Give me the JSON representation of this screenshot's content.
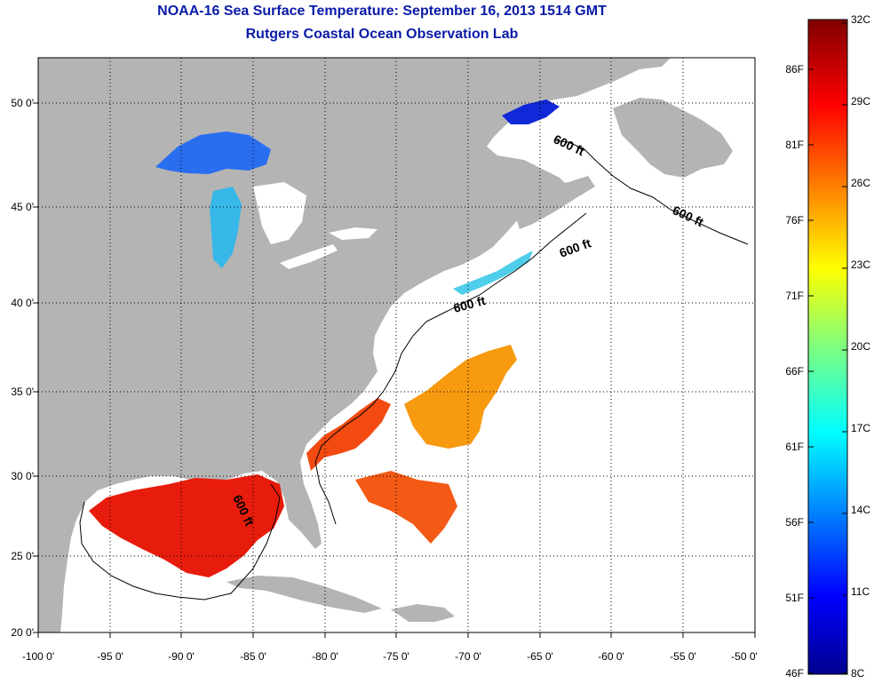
{
  "header": {
    "title": "NOAA-16 Sea Surface Temperature:  September 16, 2013 1514 GMT",
    "subtitle": "Rutgers Coastal Ocean Observation Lab"
  },
  "map": {
    "lon_labels": [
      "-100 0'",
      "-95 0'",
      "-90 0'",
      "-85 0'",
      "-80 0'",
      "-75 0'",
      "-70 0'",
      "-65 0'",
      "-60 0'",
      "-55 0'",
      "-50 0'"
    ],
    "lat_labels": [
      "50 0'",
      "45 0'",
      "40 0'",
      "35 0'",
      "30 0'",
      "25 0'",
      "20 0'"
    ],
    "contour_label": "600 ft",
    "colors": {
      "land": "#b4b4b4",
      "ocean": "#ffffff",
      "title": "#0a1aa8"
    }
  },
  "colorbar": {
    "celsius": [
      "32C",
      "29C",
      "26C",
      "23C",
      "20C",
      "17C",
      "14C",
      "11C",
      "8C"
    ],
    "fahrenheit": [
      "86F",
      "81F",
      "76F",
      "71F",
      "66F",
      "61F",
      "56F",
      "51F",
      "46F"
    ]
  }
}
